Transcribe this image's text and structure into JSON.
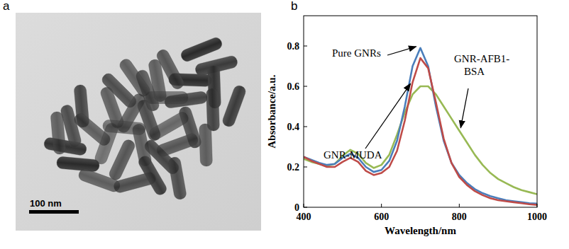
{
  "panel_labels": [
    "a",
    "b"
  ],
  "scale_bar": "100 nm",
  "chart_data": {
    "type": "line",
    "x_label": "Wavelength/nm",
    "y_label": "Absorbance/a.u.",
    "x": [
      400,
      420,
      440,
      460,
      480,
      500,
      520,
      540,
      560,
      580,
      600,
      620,
      640,
      660,
      680,
      700,
      720,
      740,
      760,
      780,
      800,
      820,
      840,
      860,
      880,
      900,
      920,
      940,
      960,
      980,
      1000
    ],
    "xlim": [
      400,
      1000
    ],
    "xticks": [
      400,
      600,
      800,
      1000
    ],
    "ylim": [
      0,
      0.95
    ],
    "yticks": [
      0,
      0.2,
      0.4,
      0.6,
      0.8
    ],
    "grid": false,
    "series": [
      {
        "name": "Pure GNRs",
        "color": "#4a7ebb",
        "values": [
          0.25,
          0.235,
          0.22,
          0.21,
          0.215,
          0.245,
          0.265,
          0.245,
          0.2,
          0.175,
          0.185,
          0.23,
          0.33,
          0.5,
          0.7,
          0.79,
          0.7,
          0.5,
          0.33,
          0.22,
          0.16,
          0.12,
          0.09,
          0.07,
          0.055,
          0.045,
          0.035,
          0.03,
          0.025,
          0.02,
          0.018
        ]
      },
      {
        "name": "GNR-MUDA",
        "color": "#be4b48",
        "values": [
          0.25,
          0.23,
          0.215,
          0.2,
          0.2,
          0.225,
          0.245,
          0.225,
          0.18,
          0.16,
          0.17,
          0.2,
          0.28,
          0.43,
          0.62,
          0.74,
          0.69,
          0.52,
          0.34,
          0.22,
          0.15,
          0.11,
          0.08,
          0.06,
          0.045,
          0.035,
          0.03,
          0.025,
          0.02,
          0.015,
          0.012
        ]
      },
      {
        "name": "GNR-AFB1-BSA",
        "color": "#98b954",
        "values": [
          0.24,
          0.225,
          0.215,
          0.205,
          0.215,
          0.255,
          0.285,
          0.265,
          0.22,
          0.195,
          0.21,
          0.26,
          0.36,
          0.47,
          0.56,
          0.6,
          0.6,
          0.56,
          0.5,
          0.44,
          0.38,
          0.32,
          0.26,
          0.21,
          0.17,
          0.14,
          0.12,
          0.1,
          0.085,
          0.075,
          0.065
        ]
      }
    ]
  }
}
